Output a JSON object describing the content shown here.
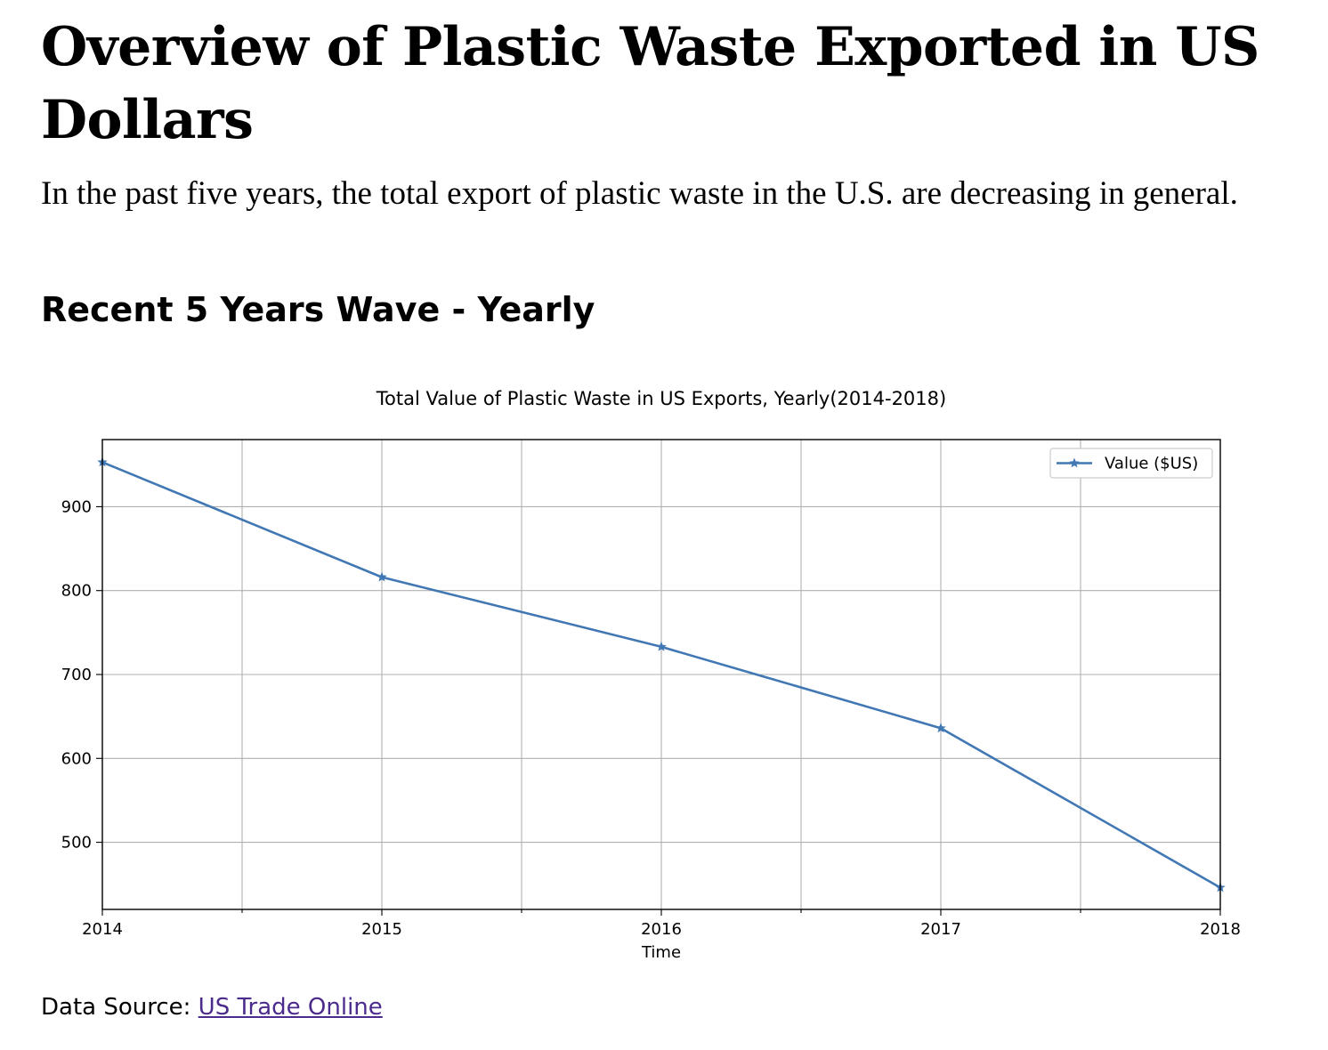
{
  "page": {
    "title": "Overview of Plastic Waste Exported in US Dollars",
    "intro": "In the past five years, the total export of plastic waste in the U.S. are decreasing in general.",
    "section_title": "Recent 5 Years Wave - Yearly",
    "source_label": "Data Source:",
    "source_link_text": "US Trade Online"
  },
  "chart_data": {
    "type": "line",
    "title": "Total Value of Plastic Waste in US Exports, Yearly(2014-2018)",
    "xlabel": "Time",
    "ylabel": "",
    "x": [
      2014,
      2015,
      2016,
      2017,
      2018
    ],
    "x_tick_labels": [
      "2014",
      "2015",
      "2016",
      "2017",
      "2018"
    ],
    "y_ticks": [
      500,
      600,
      700,
      800,
      900
    ],
    "xlim": [
      2014,
      2018
    ],
    "ylim": [
      420,
      980
    ],
    "grid": true,
    "legend_position": "top-right",
    "series": [
      {
        "name": "Value ($US)",
        "values": [
          953,
          816,
          733,
          636,
          446
        ],
        "color": "#4178b4",
        "marker": "star"
      }
    ]
  }
}
